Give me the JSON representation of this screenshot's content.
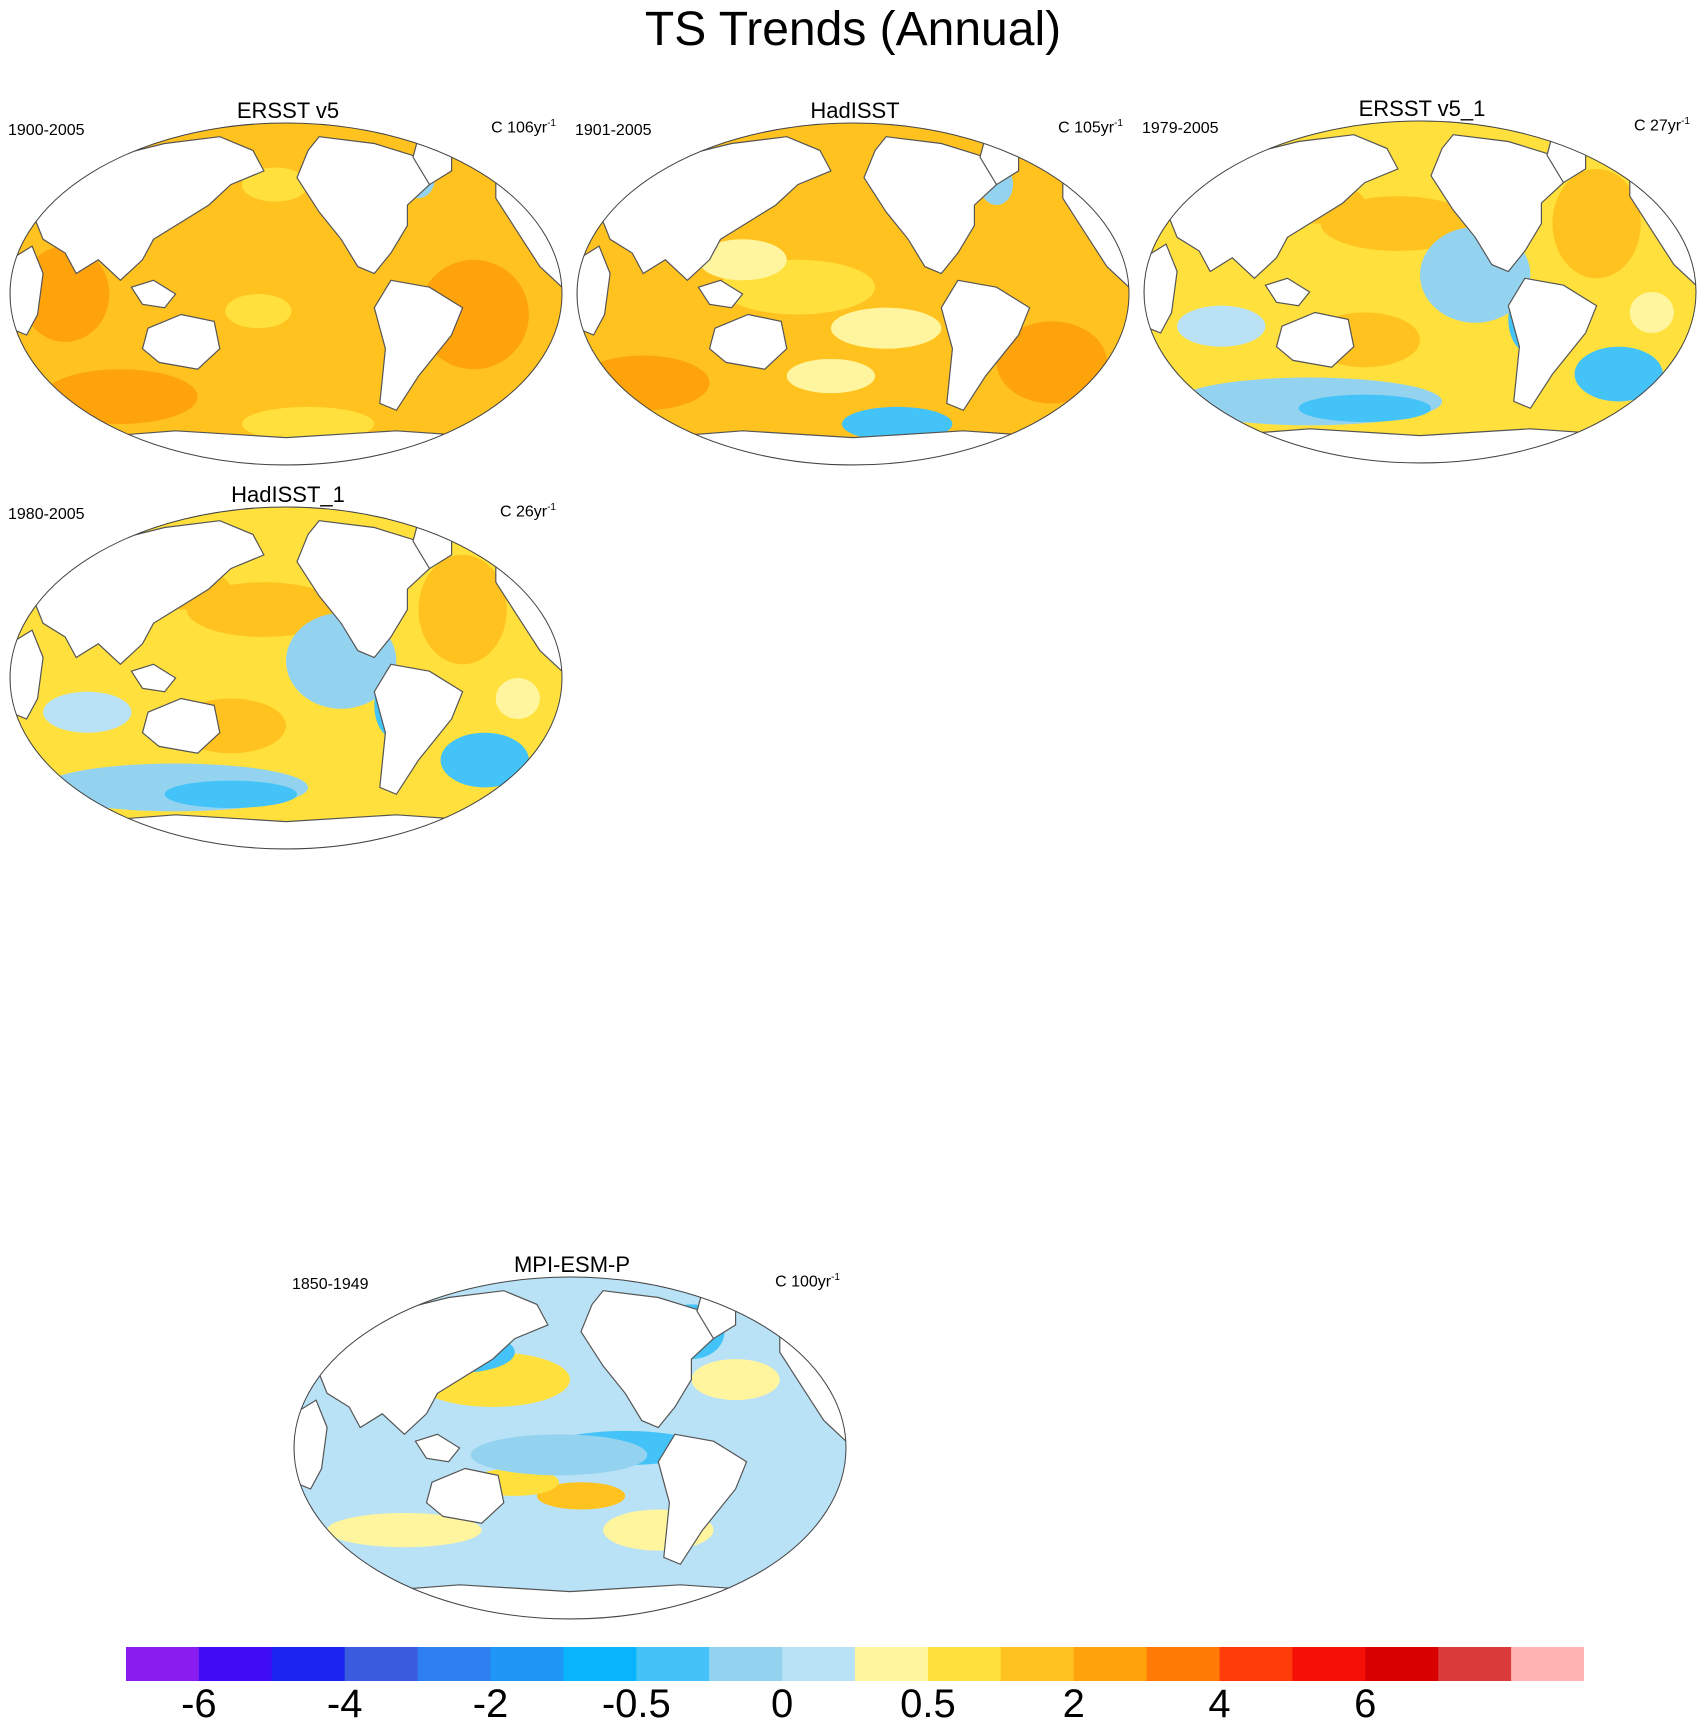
{
  "title": "TS Trends (Annual)",
  "panels": [
    {
      "name": "ERSST v5",
      "period": "1900-2005",
      "units": "C 106yr",
      "units_sup": "-1",
      "pattern": "warm-uniform"
    },
    {
      "name": "HadISST",
      "period": "1901-2005",
      "units": "C 105yr",
      "units_sup": "-1",
      "pattern": "warm-mixed"
    },
    {
      "name": "ERSST v5_1",
      "period": "1979-2005",
      "units": "C 27yr",
      "units_sup": "-1",
      "pattern": "pdo-cool-east"
    },
    {
      "name": "HadISST_1",
      "period": "1980-2005",
      "units": "C 26yr",
      "units_sup": "-1",
      "pattern": "pdo-cool-east"
    },
    {
      "name": "MPI-ESM-P",
      "period": "1850-1949",
      "units": "C 100yr",
      "units_sup": "-1",
      "pattern": "neutral-mixed"
    }
  ],
  "colorbar": {
    "colors": [
      "#8a1cf0",
      "#3f0cf5",
      "#1a23f0",
      "#3c5ce0",
      "#2f7ef0",
      "#1e96f5",
      "#0ab4fc",
      "#43c3f7",
      "#94d3f0",
      "#b9e2f6",
      "#fff59e",
      "#ffe03c",
      "#ffc21f",
      "#ffa30a",
      "#ff7b05",
      "#ff3c0a",
      "#f50f05",
      "#d80000",
      "#d93a3a",
      "#ffb3b3"
    ],
    "tick_labels": [
      "-6",
      "-4",
      "-2",
      "-0.5",
      "0",
      "0.5",
      "2",
      "4",
      "6"
    ],
    "tick_boundary_index": [
      1,
      3,
      5,
      7,
      9,
      11,
      13,
      15,
      17
    ]
  }
}
